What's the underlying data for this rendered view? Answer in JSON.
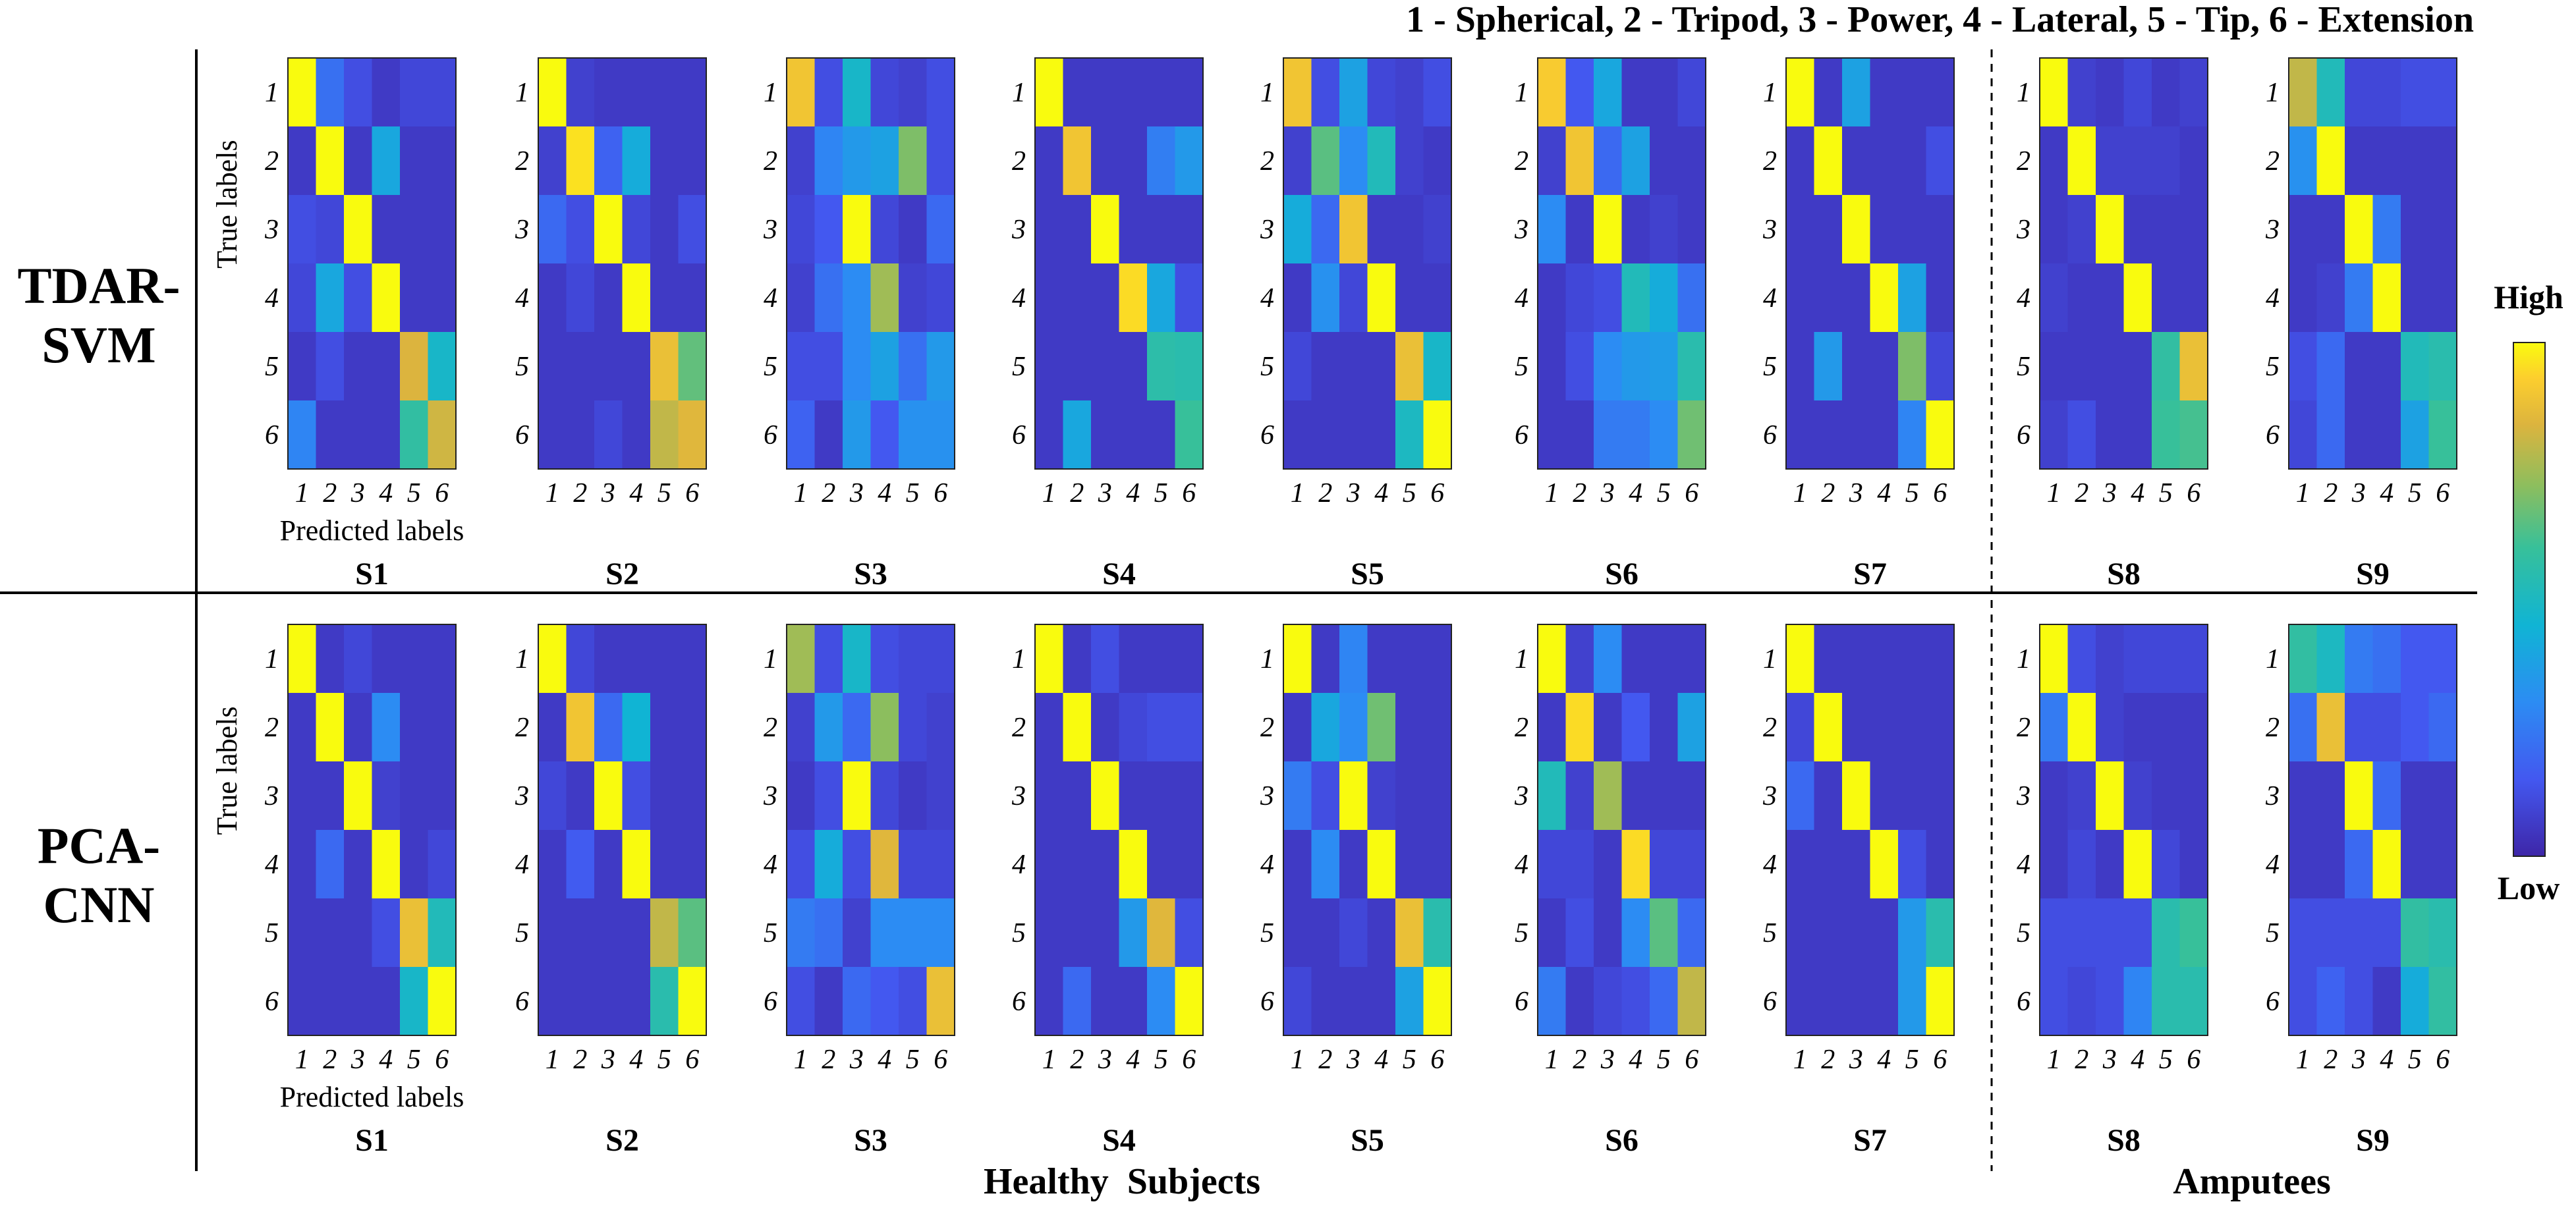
{
  "chart_data": {
    "type": "heatmap",
    "title": "1 - Spherical, 2 - Tripod, 3 - Power, 4 - Lateral, 5 - Tip, 6 - Extension",
    "xlabel": "Predicted labels",
    "ylabel": "True labels",
    "ticks": [
      "1",
      "2",
      "3",
      "4",
      "5",
      "6"
    ],
    "class_names": [
      "Spherical",
      "Tripod",
      "Power",
      "Lateral",
      "Tip",
      "Extension"
    ],
    "colorbar": {
      "high_label": "High",
      "low_label": "Low",
      "range": [
        0,
        1
      ]
    },
    "groups": [
      "Healthy  Subjects",
      "Amputees"
    ],
    "subjects": [
      "S1",
      "S2",
      "S3",
      "S4",
      "S5",
      "S6",
      "S7",
      "S8",
      "S9"
    ],
    "methods": [
      {
        "name": "TDAR-SVM",
        "name_lines": [
          "TDAR-",
          "SVM"
        ],
        "matrices": [
          [
            [
              1.0,
              0.22,
              0.12,
              0.06,
              0.1,
              0.1
            ],
            [
              0.06,
              1.0,
              0.06,
              0.4,
              0.06,
              0.06
            ],
            [
              0.12,
              0.1,
              1.0,
              0.06,
              0.06,
              0.06
            ],
            [
              0.1,
              0.4,
              0.12,
              1.0,
              0.06,
              0.06
            ],
            [
              0.06,
              0.12,
              0.06,
              0.06,
              0.84,
              0.48
            ],
            [
              0.28,
              0.06,
              0.06,
              0.06,
              0.58,
              0.82
            ]
          ],
          [
            [
              1.0,
              0.08,
              0.06,
              0.06,
              0.06,
              0.06
            ],
            [
              0.08,
              0.96,
              0.18,
              0.42,
              0.06,
              0.06
            ],
            [
              0.2,
              0.12,
              1.0,
              0.1,
              0.06,
              0.12
            ],
            [
              0.06,
              0.1,
              0.06,
              1.0,
              0.06,
              0.06
            ],
            [
              0.06,
              0.06,
              0.06,
              0.06,
              0.88,
              0.66
            ],
            [
              0.06,
              0.06,
              0.1,
              0.06,
              0.8,
              0.85
            ]
          ],
          [
            [
              0.9,
              0.12,
              0.48,
              0.1,
              0.08,
              0.12
            ],
            [
              0.08,
              0.28,
              0.35,
              0.38,
              0.7,
              0.12
            ],
            [
              0.1,
              0.15,
              1.0,
              0.1,
              0.06,
              0.2
            ],
            [
              0.08,
              0.22,
              0.3,
              0.75,
              0.08,
              0.1
            ],
            [
              0.12,
              0.12,
              0.3,
              0.38,
              0.22,
              0.35
            ],
            [
              0.18,
              0.06,
              0.35,
              0.15,
              0.32,
              0.32
            ]
          ],
          [
            [
              1.0,
              0.06,
              0.06,
              0.06,
              0.06,
              0.06
            ],
            [
              0.06,
              0.9,
              0.06,
              0.06,
              0.26,
              0.35
            ],
            [
              0.06,
              0.06,
              1.0,
              0.06,
              0.06,
              0.06
            ],
            [
              0.06,
              0.06,
              0.06,
              0.95,
              0.4,
              0.12
            ],
            [
              0.06,
              0.06,
              0.06,
              0.06,
              0.56,
              0.55
            ],
            [
              0.06,
              0.4,
              0.06,
              0.06,
              0.06,
              0.6
            ]
          ],
          [
            [
              0.9,
              0.12,
              0.38,
              0.1,
              0.08,
              0.12
            ],
            [
              0.08,
              0.65,
              0.3,
              0.52,
              0.08,
              0.06
            ],
            [
              0.42,
              0.2,
              0.9,
              0.06,
              0.06,
              0.08
            ],
            [
              0.06,
              0.32,
              0.1,
              1.0,
              0.06,
              0.06
            ],
            [
              0.1,
              0.06,
              0.06,
              0.06,
              0.88,
              0.48
            ],
            [
              0.06,
              0.06,
              0.06,
              0.06,
              0.5,
              1.0
            ]
          ],
          [
            [
              0.92,
              0.15,
              0.4,
              0.06,
              0.06,
              0.1
            ],
            [
              0.08,
              0.9,
              0.2,
              0.38,
              0.06,
              0.06
            ],
            [
              0.3,
              0.06,
              1.0,
              0.06,
              0.08,
              0.06
            ],
            [
              0.06,
              0.1,
              0.12,
              0.52,
              0.42,
              0.22
            ],
            [
              0.06,
              0.12,
              0.3,
              0.35,
              0.36,
              0.55
            ],
            [
              0.06,
              0.06,
              0.25,
              0.25,
              0.3,
              0.68
            ]
          ],
          [
            [
              1.0,
              0.06,
              0.38,
              0.06,
              0.06,
              0.06
            ],
            [
              0.06,
              1.0,
              0.06,
              0.06,
              0.06,
              0.12
            ],
            [
              0.06,
              0.06,
              1.0,
              0.06,
              0.06,
              0.06
            ],
            [
              0.06,
              0.06,
              0.06,
              1.0,
              0.38,
              0.06
            ],
            [
              0.06,
              0.35,
              0.06,
              0.06,
              0.7,
              0.1
            ],
            [
              0.06,
              0.06,
              0.06,
              0.06,
              0.28,
              1.0
            ]
          ],
          [
            [
              1.0,
              0.08,
              0.06,
              0.1,
              0.06,
              0.08
            ],
            [
              0.06,
              1.0,
              0.08,
              0.08,
              0.08,
              0.06
            ],
            [
              0.06,
              0.08,
              1.0,
              0.06,
              0.06,
              0.06
            ],
            [
              0.08,
              0.06,
              0.06,
              1.0,
              0.06,
              0.06
            ],
            [
              0.06,
              0.06,
              0.06,
              0.06,
              0.58,
              0.88
            ],
            [
              0.08,
              0.12,
              0.06,
              0.06,
              0.6,
              0.62
            ]
          ],
          [
            [
              0.8,
              0.52,
              0.1,
              0.1,
              0.12,
              0.12
            ],
            [
              0.32,
              1.0,
              0.06,
              0.06,
              0.06,
              0.06
            ],
            [
              0.06,
              0.06,
              1.0,
              0.25,
              0.06,
              0.06
            ],
            [
              0.06,
              0.08,
              0.25,
              1.0,
              0.06,
              0.06
            ],
            [
              0.12,
              0.2,
              0.06,
              0.06,
              0.52,
              0.55
            ],
            [
              0.1,
              0.2,
              0.06,
              0.06,
              0.38,
              0.6
            ]
          ]
        ]
      },
      {
        "name": "PCA-CNN",
        "name_lines": [
          "PCA-",
          "CNN"
        ],
        "matrices": [
          [
            [
              1.0,
              0.06,
              0.1,
              0.06,
              0.06,
              0.06
            ],
            [
              0.06,
              1.0,
              0.06,
              0.3,
              0.06,
              0.06
            ],
            [
              0.06,
              0.06,
              1.0,
              0.08,
              0.06,
              0.06
            ],
            [
              0.06,
              0.2,
              0.06,
              1.0,
              0.06,
              0.1
            ],
            [
              0.06,
              0.06,
              0.06,
              0.12,
              0.88,
              0.52
            ],
            [
              0.06,
              0.06,
              0.06,
              0.06,
              0.48,
              1.0
            ]
          ],
          [
            [
              1.0,
              0.1,
              0.06,
              0.06,
              0.06,
              0.06
            ],
            [
              0.06,
              0.9,
              0.2,
              0.45,
              0.06,
              0.06
            ],
            [
              0.1,
              0.06,
              1.0,
              0.12,
              0.06,
              0.06
            ],
            [
              0.06,
              0.16,
              0.06,
              1.0,
              0.06,
              0.06
            ],
            [
              0.06,
              0.06,
              0.06,
              0.06,
              0.8,
              0.65
            ],
            [
              0.06,
              0.06,
              0.06,
              0.06,
              0.55,
              1.0
            ]
          ],
          [
            [
              0.75,
              0.12,
              0.48,
              0.12,
              0.1,
              0.1
            ],
            [
              0.08,
              0.35,
              0.2,
              0.72,
              0.1,
              0.08
            ],
            [
              0.06,
              0.12,
              1.0,
              0.1,
              0.06,
              0.08
            ],
            [
              0.12,
              0.42,
              0.12,
              0.85,
              0.1,
              0.1
            ],
            [
              0.25,
              0.22,
              0.08,
              0.3,
              0.3,
              0.3
            ],
            [
              0.12,
              0.06,
              0.2,
              0.15,
              0.12,
              0.88
            ]
          ],
          [
            [
              1.0,
              0.06,
              0.12,
              0.06,
              0.06,
              0.06
            ],
            [
              0.06,
              1.0,
              0.06,
              0.1,
              0.12,
              0.12
            ],
            [
              0.06,
              0.06,
              1.0,
              0.06,
              0.06,
              0.06
            ],
            [
              0.06,
              0.06,
              0.06,
              1.0,
              0.06,
              0.06
            ],
            [
              0.06,
              0.06,
              0.06,
              0.35,
              0.85,
              0.12
            ],
            [
              0.06,
              0.2,
              0.06,
              0.06,
              0.3,
              1.0
            ]
          ],
          [
            [
              1.0,
              0.06,
              0.28,
              0.06,
              0.06,
              0.06
            ],
            [
              0.06,
              0.4,
              0.3,
              0.68,
              0.06,
              0.06
            ],
            [
              0.25,
              0.12,
              1.0,
              0.08,
              0.06,
              0.06
            ],
            [
              0.06,
              0.3,
              0.06,
              1.0,
              0.06,
              0.06
            ],
            [
              0.06,
              0.06,
              0.1,
              0.06,
              0.88,
              0.55
            ],
            [
              0.1,
              0.06,
              0.06,
              0.06,
              0.38,
              1.0
            ]
          ],
          [
            [
              1.0,
              0.08,
              0.3,
              0.06,
              0.06,
              0.06
            ],
            [
              0.06,
              0.95,
              0.06,
              0.15,
              0.06,
              0.38
            ],
            [
              0.52,
              0.08,
              0.75,
              0.06,
              0.06,
              0.06
            ],
            [
              0.1,
              0.1,
              0.06,
              0.95,
              0.1,
              0.1
            ],
            [
              0.06,
              0.12,
              0.06,
              0.3,
              0.65,
              0.2
            ],
            [
              0.25,
              0.06,
              0.1,
              0.12,
              0.2,
              0.8
            ]
          ],
          [
            [
              1.0,
              0.06,
              0.06,
              0.06,
              0.06,
              0.06
            ],
            [
              0.1,
              1.0,
              0.06,
              0.06,
              0.06,
              0.06
            ],
            [
              0.2,
              0.06,
              1.0,
              0.06,
              0.06,
              0.06
            ],
            [
              0.06,
              0.06,
              0.06,
              1.0,
              0.12,
              0.06
            ],
            [
              0.06,
              0.06,
              0.06,
              0.06,
              0.35,
              0.55
            ],
            [
              0.06,
              0.06,
              0.06,
              0.06,
              0.35,
              1.0
            ]
          ],
          [
            [
              1.0,
              0.12,
              0.08,
              0.1,
              0.1,
              0.1
            ],
            [
              0.25,
              1.0,
              0.08,
              0.06,
              0.06,
              0.06
            ],
            [
              0.06,
              0.08,
              1.0,
              0.08,
              0.06,
              0.06
            ],
            [
              0.06,
              0.1,
              0.06,
              1.0,
              0.1,
              0.06
            ],
            [
              0.12,
              0.12,
              0.12,
              0.12,
              0.55,
              0.6
            ],
            [
              0.12,
              0.1,
              0.12,
              0.28,
              0.55,
              0.55
            ]
          ],
          [
            [
              0.58,
              0.5,
              0.25,
              0.22,
              0.15,
              0.15
            ],
            [
              0.22,
              0.88,
              0.12,
              0.12,
              0.15,
              0.2
            ],
            [
              0.06,
              0.06,
              1.0,
              0.2,
              0.06,
              0.06
            ],
            [
              0.06,
              0.06,
              0.2,
              1.0,
              0.06,
              0.06
            ],
            [
              0.12,
              0.12,
              0.12,
              0.12,
              0.58,
              0.55
            ],
            [
              0.12,
              0.18,
              0.12,
              0.06,
              0.42,
              0.58
            ]
          ]
        ]
      }
    ]
  }
}
